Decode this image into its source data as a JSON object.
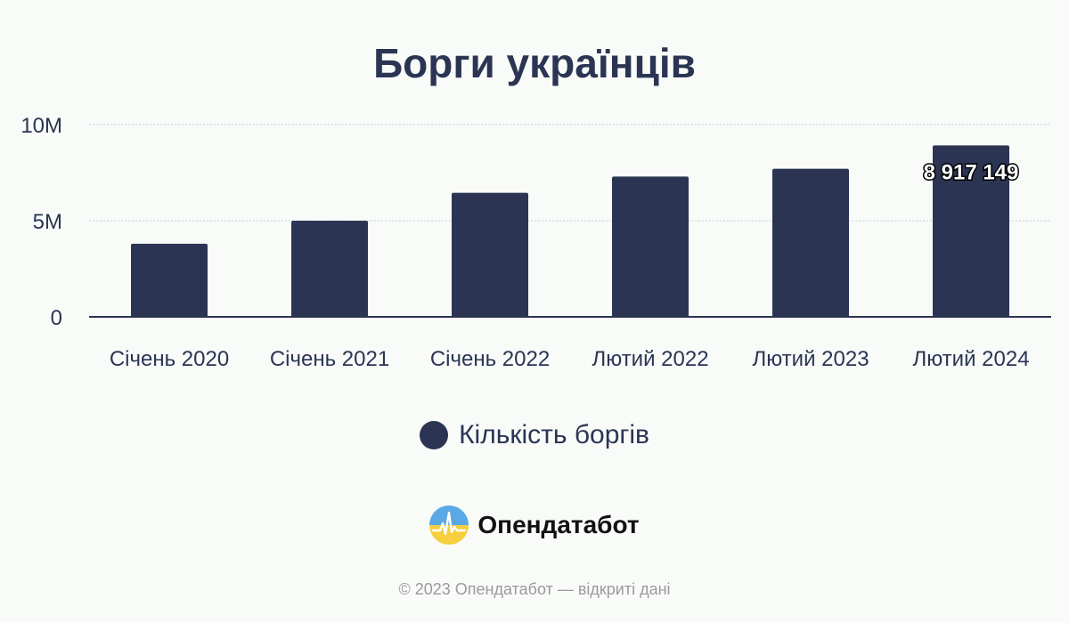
{
  "chart_data": {
    "type": "bar",
    "title": "Борги українців",
    "categories": [
      "Січень 2020",
      "Січень 2021",
      "Січень 2022",
      "Лютий 2022",
      "Лютий 2023",
      "Лютий 2024"
    ],
    "series": [
      {
        "name": "Кількість боргів",
        "values": [
          3800000,
          5000000,
          6450000,
          7300000,
          7700000,
          8917149
        ],
        "color": "#2b3553"
      }
    ],
    "data_labels": [
      null,
      null,
      null,
      null,
      null,
      "8 917 149"
    ],
    "ylim": [
      0,
      10000000
    ],
    "yticks": [
      {
        "value": 0,
        "label": "0"
      },
      {
        "value": 5000000,
        "label": "5M"
      },
      {
        "value": 10000000,
        "label": "10M"
      }
    ],
    "grid": true,
    "legend_position": "bottom"
  },
  "brand": {
    "name": "Опендатабот",
    "logo_icon": "opendatabot-logo-icon"
  },
  "footer": "© 2023 Опендатабот — відкриті дані"
}
